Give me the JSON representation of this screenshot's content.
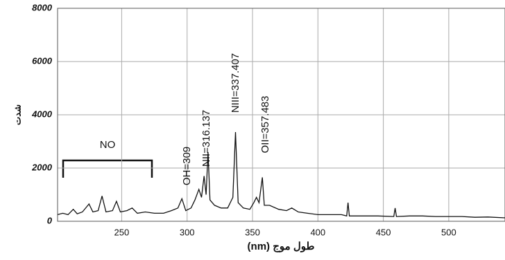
{
  "chart_data": {
    "type": "line",
    "x_label": "طول موج (nm)",
    "y_label": "شدت",
    "annotations": [
      "NO",
      "OH=309",
      "NII=316.137",
      "NIII=337.407",
      "OII=357.483"
    ],
    "x": [
      201,
      205,
      209,
      213,
      216,
      220,
      225,
      228,
      232,
      235,
      238,
      243,
      246,
      249,
      254,
      258,
      262,
      268,
      275,
      282,
      288,
      293,
      296,
      299,
      303,
      306,
      309,
      311,
      313,
      314.5,
      316,
      317.5,
      321,
      326,
      331,
      335,
      337,
      339,
      343,
      348,
      351,
      353,
      355,
      357.5,
      359,
      363,
      370,
      376,
      380,
      385,
      392,
      400,
      410,
      418,
      422,
      423,
      424,
      435,
      446,
      458,
      459,
      460,
      470,
      480,
      490,
      500,
      510,
      520,
      530,
      543
    ],
    "series": [
      {
        "color": "#111111",
        "values": [
          250,
          300,
          250,
          450,
          280,
          350,
          650,
          350,
          400,
          950,
          350,
          400,
          750,
          350,
          400,
          500,
          300,
          350,
          300,
          300,
          400,
          500,
          850,
          400,
          500,
          800,
          1200,
          900,
          1700,
          1000,
          2600,
          800,
          600,
          500,
          500,
          900,
          3350,
          700,
          500,
          450,
          700,
          900,
          700,
          1650,
          600,
          600,
          450,
          400,
          500,
          350,
          300,
          250,
          250,
          250,
          200,
          700,
          200,
          200,
          200,
          180,
          500,
          180,
          200,
          200,
          180,
          180,
          180,
          150,
          160,
          130
        ]
      }
    ],
    "xlim": [
      201,
      543
    ],
    "ylim": [
      0,
      8000
    ],
    "xticks": [
      250,
      300,
      350,
      400,
      450,
      500
    ],
    "yticks": [
      0,
      2000,
      4000,
      6000,
      8000
    ],
    "grid": true
  }
}
